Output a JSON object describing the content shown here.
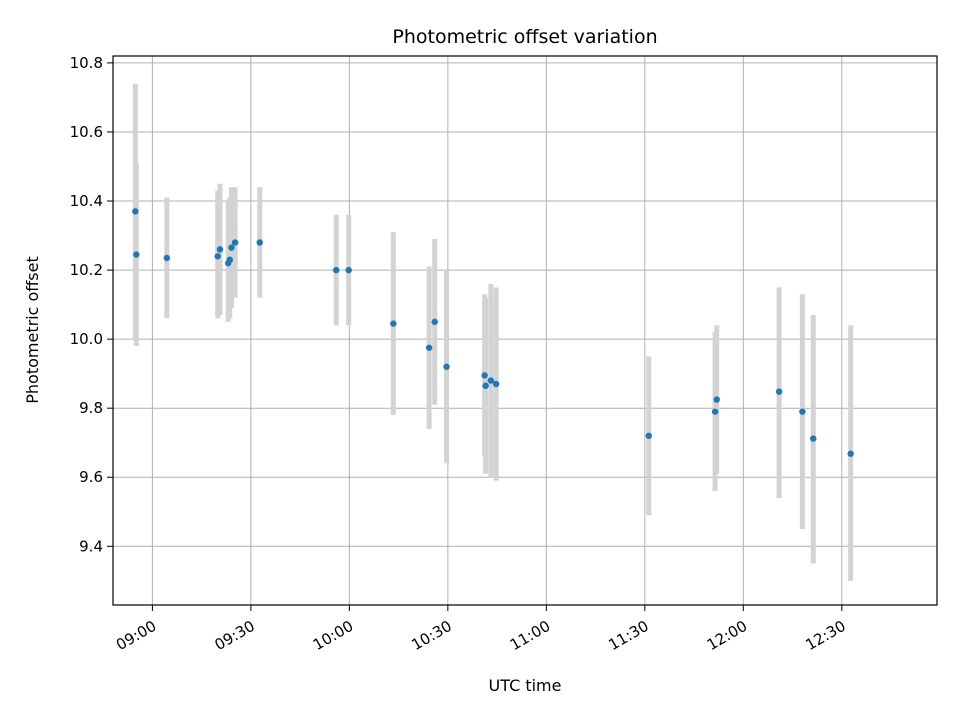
{
  "chart_data": {
    "type": "scatter",
    "title": "Photometric offset variation",
    "xlabel": "UTC time",
    "ylabel": "Photometric offset",
    "x_type": "time",
    "xlim": [
      "08:48",
      "12:59"
    ],
    "ylim": [
      9.23,
      10.82
    ],
    "x_ticks": [
      "09:00",
      "09:30",
      "10:00",
      "10:30",
      "11:00",
      "11:30",
      "12:00",
      "12:30"
    ],
    "y_ticks": [
      9.4,
      9.6,
      9.8,
      10.0,
      10.2,
      10.4,
      10.6,
      10.8
    ],
    "y_tick_labels": [
      "9.4",
      "9.6",
      "9.8",
      "10.0",
      "10.2",
      "10.4",
      "10.6",
      "10.8"
    ],
    "grid": true,
    "colors": {
      "point": "#1f77b4",
      "errorbar": "#d3d3d3",
      "grid": "#b0b0b0"
    },
    "points": [
      {
        "x": "08:54:48",
        "y": 10.37,
        "lo": 10.0,
        "hi": 10.74
      },
      {
        "x": "08:55:06",
        "y": 10.245,
        "lo": 9.98,
        "hi": 10.51
      },
      {
        "x": "09:04:24",
        "y": 10.235,
        "lo": 10.06,
        "hi": 10.41
      },
      {
        "x": "09:19:54",
        "y": 10.24,
        "lo": 10.06,
        "hi": 10.43
      },
      {
        "x": "09:20:36",
        "y": 10.26,
        "lo": 10.07,
        "hi": 10.45
      },
      {
        "x": "09:23:06",
        "y": 10.22,
        "lo": 10.05,
        "hi": 10.4
      },
      {
        "x": "09:23:36",
        "y": 10.23,
        "lo": 10.06,
        "hi": 10.41
      },
      {
        "x": "09:24:06",
        "y": 10.265,
        "lo": 10.09,
        "hi": 10.44
      },
      {
        "x": "09:25:12",
        "y": 10.28,
        "lo": 10.12,
        "hi": 10.44
      },
      {
        "x": "09:32:42",
        "y": 10.28,
        "lo": 10.12,
        "hi": 10.44
      },
      {
        "x": "09:56:00",
        "y": 10.2,
        "lo": 10.04,
        "hi": 10.36
      },
      {
        "x": "09:59:48",
        "y": 10.2,
        "lo": 10.04,
        "hi": 10.36
      },
      {
        "x": "10:13:24",
        "y": 10.045,
        "lo": 9.78,
        "hi": 10.31
      },
      {
        "x": "10:24:18",
        "y": 9.975,
        "lo": 9.74,
        "hi": 10.21
      },
      {
        "x": "10:26:00",
        "y": 10.05,
        "lo": 9.81,
        "hi": 10.29
      },
      {
        "x": "10:29:36",
        "y": 9.92,
        "lo": 9.64,
        "hi": 10.2
      },
      {
        "x": "10:41:12",
        "y": 9.895,
        "lo": 9.66,
        "hi": 10.13
      },
      {
        "x": "10:41:30",
        "y": 9.865,
        "lo": 9.61,
        "hi": 10.12
      },
      {
        "x": "10:43:06",
        "y": 9.88,
        "lo": 9.6,
        "hi": 10.16
      },
      {
        "x": "10:44:42",
        "y": 9.87,
        "lo": 9.59,
        "hi": 10.15
      },
      {
        "x": "11:31:12",
        "y": 9.72,
        "lo": 9.49,
        "hi": 9.95
      },
      {
        "x": "11:51:24",
        "y": 9.79,
        "lo": 9.56,
        "hi": 10.02
      },
      {
        "x": "11:51:54",
        "y": 9.825,
        "lo": 9.61,
        "hi": 10.04
      },
      {
        "x": "12:10:54",
        "y": 9.848,
        "lo": 9.54,
        "hi": 10.15
      },
      {
        "x": "12:18:00",
        "y": 9.79,
        "lo": 9.45,
        "hi": 10.13
      },
      {
        "x": "12:21:18",
        "y": 9.712,
        "lo": 9.35,
        "hi": 10.07
      },
      {
        "x": "12:32:42",
        "y": 9.668,
        "lo": 9.3,
        "hi": 10.04
      }
    ]
  }
}
